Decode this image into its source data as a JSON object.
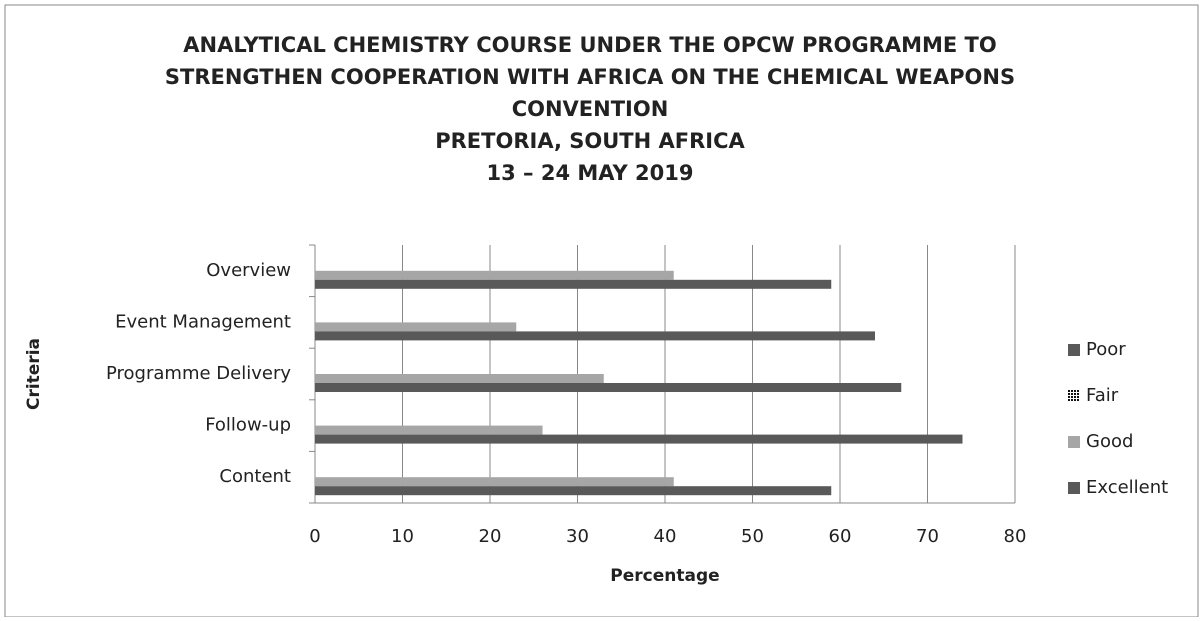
{
  "chart_data": {
    "type": "barh",
    "title": [
      "ANALYTICAL CHEMISTRY COURSE UNDER THE OPCW PROGRAMME TO",
      "STRENGTHEN COOPERATION WITH AFRICA ON THE CHEMICAL WEAPONS",
      "CONVENTION",
      "PRETORIA, SOUTH AFRICA",
      "13 – 24 MAY 2019"
    ],
    "xlabel": "Percentage",
    "ylabel": "Criteria",
    "categories": [
      "Content",
      "Follow-up",
      "Programme Delivery",
      "Event Management",
      "Overview"
    ],
    "series": [
      {
        "name": "Poor",
        "color": "#595959",
        "values": [
          0,
          0,
          0,
          0,
          0
        ]
      },
      {
        "name": "Fair",
        "color": "#111111",
        "values": [
          0,
          0,
          0,
          0,
          0
        ]
      },
      {
        "name": "Good",
        "color": "#a6a6a6",
        "values": [
          41,
          26,
          33,
          23,
          41
        ]
      },
      {
        "name": "Excellent",
        "color": "#595959",
        "values": [
          59,
          74,
          67,
          64,
          59
        ]
      }
    ],
    "xlim": [
      0,
      80
    ],
    "xticks": [
      0,
      10,
      20,
      30,
      40,
      50,
      60,
      70,
      80
    ],
    "grid": true,
    "legend": "right"
  }
}
